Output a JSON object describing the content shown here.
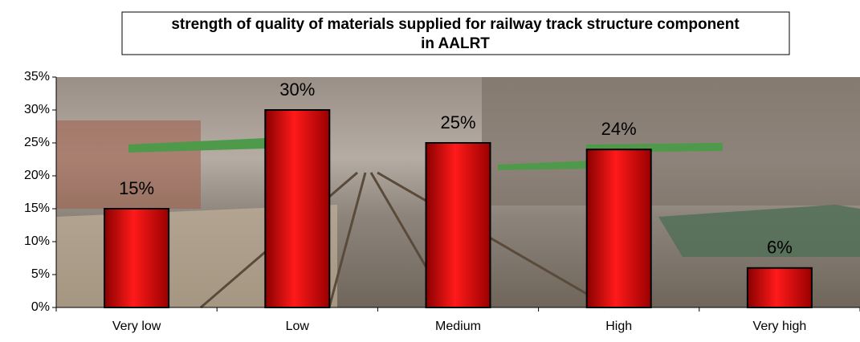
{
  "chart_data": {
    "type": "bar",
    "title": "strength of quality of materials supplied for railway track structure component in AALRT",
    "categories": [
      "Very low",
      "Low",
      "Medium",
      "High",
      "Very high"
    ],
    "values": [
      15,
      30,
      25,
      24,
      6
    ],
    "value_labels": [
      "15%",
      "30%",
      "25%",
      "24%",
      "6%"
    ],
    "color": "#e00000",
    "ylim": [
      0,
      35
    ],
    "yticks": [
      {
        "value": 0,
        "label": "0%"
      },
      {
        "value": 5,
        "label": "5%"
      },
      {
        "value": 10,
        "label": "10%"
      },
      {
        "value": 15,
        "label": "15%"
      },
      {
        "value": 20,
        "label": "20%"
      },
      {
        "value": 25,
        "label": "25%"
      },
      {
        "value": 30,
        "label": "30%"
      },
      {
        "value": 35,
        "label": "35%"
      }
    ]
  }
}
